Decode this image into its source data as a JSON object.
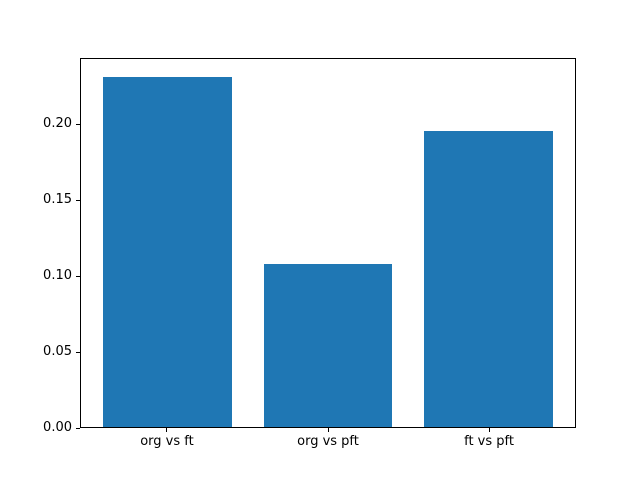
{
  "figure": {
    "background": "#ffffff"
  },
  "chart_data": {
    "type": "bar",
    "title": "",
    "xlabel": "",
    "ylabel": "",
    "categories": [
      "org vs ft",
      "org vs pft",
      "ft vs pft"
    ],
    "values": [
      0.232,
      0.108,
      0.196
    ],
    "ylim": [
      0,
      0.2436
    ],
    "yticks": [
      0.0,
      0.05,
      0.1,
      0.15,
      0.2
    ],
    "ytick_labels": [
      "0.00",
      "0.05",
      "0.10",
      "0.15",
      "0.20"
    ],
    "xlim": [
      -0.54,
      2.54
    ],
    "bar_width": 0.8,
    "bar_color": "#1f77b4",
    "spine_color": "#000000",
    "text_color": "#000000",
    "grid": false,
    "legend": null
  }
}
